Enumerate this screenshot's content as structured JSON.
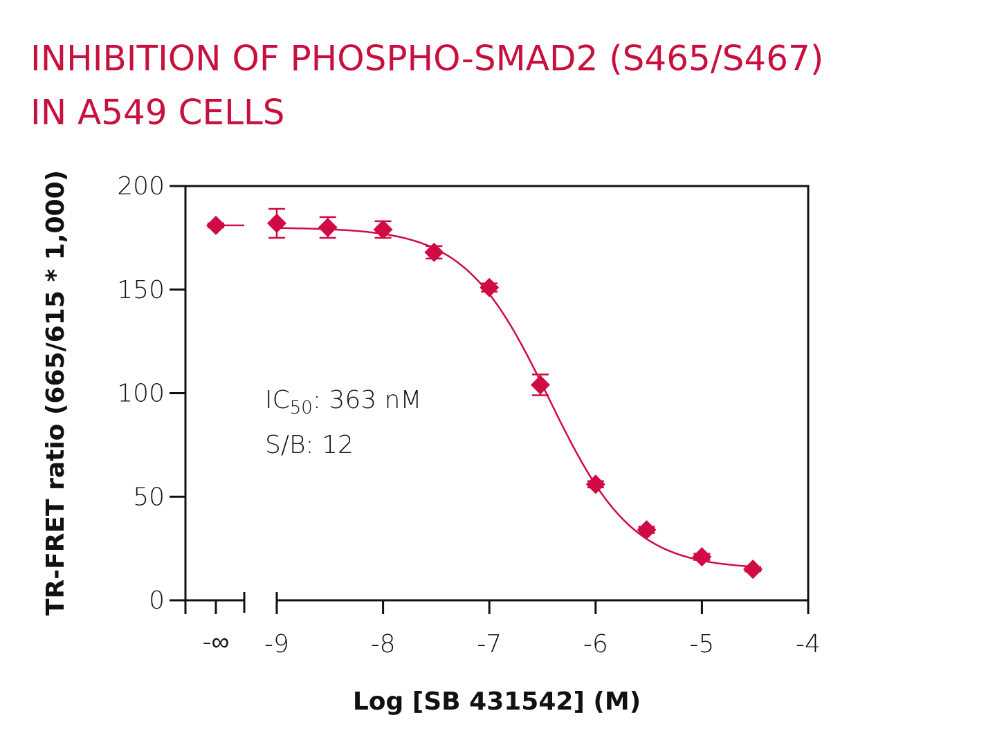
{
  "chart_data": {
    "type": "scatter",
    "title": [
      "INHIBITION OF PHOSPHO-SMAD2 (S465/S467)",
      "IN A549 CELLS"
    ],
    "x_label": "Log [SB 431542] (M)",
    "y_label": "TR-FRET ratio (665/615 * 1,000)",
    "xlim": [
      -9,
      -4
    ],
    "xticks": [
      -9,
      -8,
      -7,
      -6,
      -5,
      -4
    ],
    "ylim": [
      0,
      200
    ],
    "yticks": [
      0,
      50,
      100,
      150,
      200
    ],
    "color": "#cf0a45",
    "series": [
      {
        "color": "#cf0a45",
        "x": [
          -9,
          -8.52,
          -8,
          -7.52,
          -7,
          -6.52,
          -6,
          -5.52,
          -5,
          -4.52
        ],
        "values": [
          182,
          180,
          179,
          168,
          151,
          104,
          56,
          34,
          21,
          15
        ],
        "errors": [
          7,
          5,
          4,
          3,
          2,
          5,
          1.5,
          1.5,
          1.5,
          1
        ]
      }
    ],
    "control": {
      "x_label": "-∞",
      "value": 181,
      "error": 1
    },
    "fit": {
      "bottom": 15,
      "top": 180,
      "log_ic50": -6.44,
      "hill": 1.1
    },
    "annotations": [
      {
        "text": "IC",
        "sub": "50",
        "rest": ": 363 nM"
      },
      {
        "text": "S/B: 12"
      }
    ]
  }
}
